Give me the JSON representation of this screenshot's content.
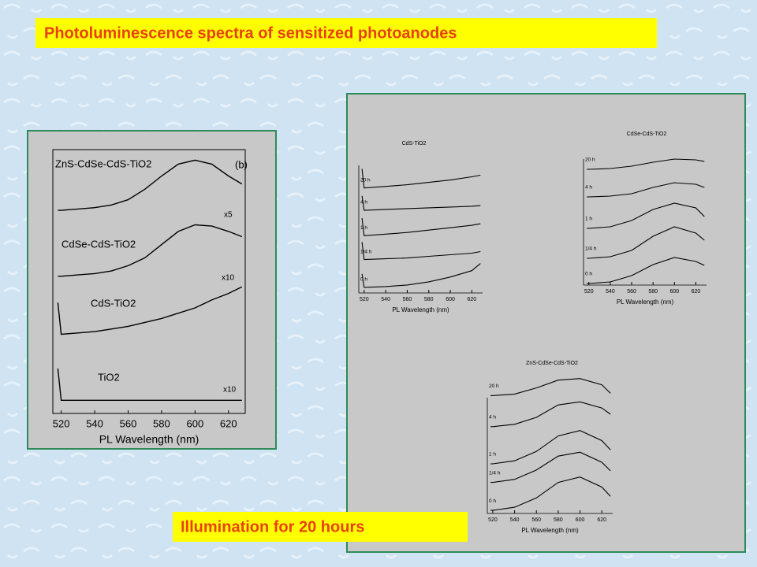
{
  "title": "Photoluminescence spectra of sensitized photoanodes",
  "footer": "Illumination for  20 hours",
  "chart_data": [
    {
      "type": "line",
      "xlabel": "PL Wavelength (nm)",
      "color": "#000000",
      "xlim": [
        515,
        630
      ],
      "xticks": [
        520,
        540,
        560,
        580,
        600,
        620
      ],
      "ylim": [
        0,
        100
      ],
      "x": [
        518,
        520,
        530,
        540,
        550,
        560,
        570,
        580,
        590,
        600,
        610,
        620,
        628
      ],
      "series": [
        {
          "name": "ZnS-CdSe-CdS-TiO2",
          "values": [
            77,
            77,
            77.5,
            78,
            79,
            81,
            85,
            90,
            94.5,
            96,
            94.5,
            90,
            87
          ]
        },
        {
          "name": "CdSe-CdS-TiO2",
          "values": [
            52,
            52,
            52.5,
            53,
            54,
            56,
            59,
            64,
            69,
            71.5,
            71,
            69,
            67
          ]
        },
        {
          "name": "CdS-TiO2",
          "values": [
            42,
            30,
            30.5,
            31,
            32,
            33,
            34.5,
            36,
            38,
            40,
            43,
            45.5,
            48
          ]
        },
        {
          "name": "TiO2",
          "values": [
            17,
            5,
            5,
            5,
            5,
            5,
            5,
            5,
            5,
            5,
            5,
            5,
            5
          ]
        }
      ],
      "annotations": [
        "x5",
        "x10",
        "x10",
        "(b)"
      ]
    },
    {
      "type": "line",
      "title": "CdS-TiO2",
      "xlabel": "PL Wavelength (nm)",
      "color": "#000000",
      "xlim": [
        515,
        630
      ],
      "xticks": [
        520,
        540,
        560,
        580,
        600,
        620
      ],
      "ylim": [
        0,
        100
      ],
      "x": [
        518,
        520,
        540,
        560,
        580,
        600,
        620,
        628
      ],
      "series": [
        {
          "name": "20 h",
          "values": [
            78,
            66,
            67,
            68,
            69.5,
            71,
            73,
            74
          ]
        },
        {
          "name": "4 h",
          "values": [
            61,
            52,
            52.5,
            53,
            53.5,
            54,
            54.5,
            55
          ]
        },
        {
          "name": "1 h",
          "values": [
            47,
            36,
            37,
            38,
            39.5,
            41,
            42.5,
            43.5
          ]
        },
        {
          "name": "1/4 h",
          "values": [
            32,
            21,
            21.5,
            22,
            23,
            24,
            25,
            26
          ]
        },
        {
          "name": "0 h",
          "values": [
            12,
            3.5,
            4,
            5,
            7,
            10,
            14,
            18.5
          ]
        }
      ]
    },
    {
      "type": "line",
      "title": "CdSe-CdS-TiO2",
      "xlabel": "PL Wavelength (nm)",
      "color": "#000000",
      "xlim": [
        515,
        630
      ],
      "xticks": [
        520,
        540,
        560,
        580,
        600,
        620
      ],
      "ylim": [
        0,
        100
      ],
      "x": [
        518,
        520,
        540,
        560,
        580,
        600,
        620,
        628
      ],
      "series": [
        {
          "name": "20 h",
          "values": [
            73.5,
            73.5,
            74,
            75.5,
            78,
            80,
            79.5,
            78.5
          ]
        },
        {
          "name": "4 h",
          "values": [
            56,
            56,
            56.5,
            58,
            62,
            65,
            64,
            62
          ]
        },
        {
          "name": "1 h",
          "values": [
            36,
            36,
            37,
            41,
            48,
            52,
            49,
            43.5
          ]
        },
        {
          "name": "1/4 h",
          "values": [
            17,
            17,
            18,
            22,
            31,
            37,
            33,
            28.5
          ]
        },
        {
          "name": "0 h",
          "values": [
            1,
            1,
            2,
            6,
            13,
            17.5,
            15,
            12.5
          ]
        }
      ]
    },
    {
      "type": "line",
      "title": "ZnS-CdSe-CdS-TiO2",
      "xlabel": "PL Wavelength (nm)",
      "color": "#000000",
      "xlim": [
        515,
        630
      ],
      "xticks": [
        520,
        540,
        560,
        580,
        600,
        620
      ],
      "ylim": [
        0,
        95
      ],
      "x": [
        518,
        520,
        540,
        560,
        580,
        600,
        620,
        628
      ],
      "series": [
        {
          "name": "20 h",
          "values": [
            76,
            76,
            77,
            81,
            86,
            87,
            83,
            77.5
          ]
        },
        {
          "name": "4 h",
          "values": [
            56,
            56,
            57.5,
            62,
            70,
            72,
            68,
            64
          ]
        },
        {
          "name": "1 h",
          "values": [
            32,
            32,
            34,
            40,
            50,
            53.5,
            47,
            41
          ]
        },
        {
          "name": "1/4 h",
          "values": [
            20,
            20,
            22,
            28,
            37,
            39.5,
            33,
            27.5
          ]
        },
        {
          "name": "0 h",
          "values": [
            2,
            2,
            4,
            10,
            20,
            23.5,
            17,
            11
          ]
        }
      ]
    }
  ]
}
